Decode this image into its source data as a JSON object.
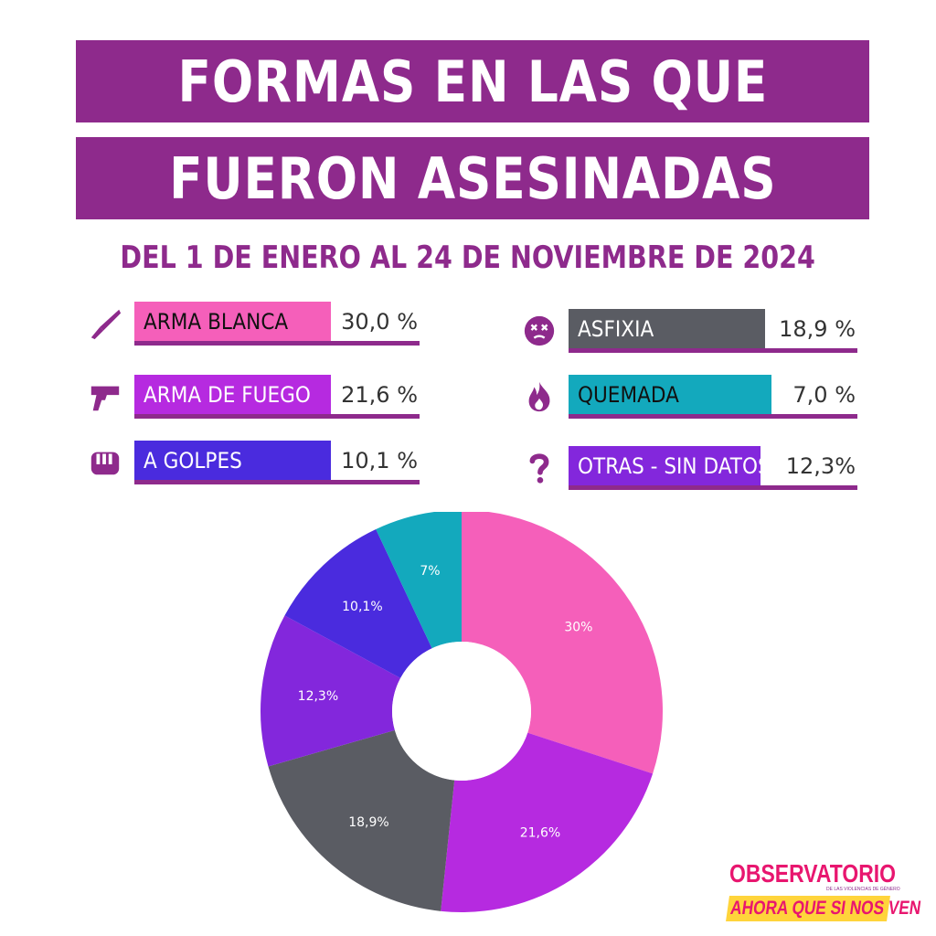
{
  "header": {
    "title_line1": "FORMAS EN LAS QUE",
    "title_line2": "FUERON ASESINADAS",
    "subtitle": "DEL 1 DE ENERO AL 24 DE NOVIEMBRE DE 2024"
  },
  "legend": {
    "left": [
      {
        "label": "ARMA BLANCA",
        "value": "30,0 %",
        "color": "#f55fba",
        "text_color": "#111111",
        "icon": "knife-icon"
      },
      {
        "label": "ARMA DE FUEGO",
        "value": "21,6 %",
        "color": "#b62ae0",
        "text_color": "#ffffff",
        "icon": "gun-icon"
      },
      {
        "label": "A GOLPES",
        "value": "10,1 %",
        "color": "#4a2bde",
        "text_color": "#ffffff",
        "icon": "fist-icon"
      }
    ],
    "right": [
      {
        "label": "ASFIXIA",
        "value": "18,9 %",
        "color": "#5a5c63",
        "text_color": "#ffffff",
        "icon": "dizzy-face-icon"
      },
      {
        "label": "QUEMADA",
        "value": "7,0 %",
        "color": "#13a9bd",
        "text_color": "#111111",
        "icon": "fire-icon"
      },
      {
        "label": "OTRAS - SIN DATOS",
        "value": "12,3%",
        "color": "#8327dc",
        "text_color": "#ffffff",
        "icon": "question-mark-icon"
      }
    ]
  },
  "chart_data": {
    "type": "pie",
    "donut": true,
    "categories": [
      "Arma blanca",
      "Arma de fuego",
      "Asfixia",
      "Otras - sin datos",
      "A golpes",
      "Quemada"
    ],
    "values": [
      30,
      21.6,
      18.9,
      12.3,
      10.1,
      7
    ],
    "data_labels": [
      "30%",
      "21,6%",
      "18,9%",
      "12,3%",
      "10,1%",
      "7%"
    ],
    "colors": [
      "#f55fba",
      "#b62ae0",
      "#5a5c63",
      "#8327dc",
      "#4a2bde",
      "#13a9bd"
    ]
  },
  "logo": {
    "line1": "OBSERVATORIO",
    "small": "DE LAS VIOLENCIAS DE GÉNERO",
    "line2": "AHORA QUE SI NOS VEN"
  },
  "colors": {
    "brand_purple": "#8e2a8c",
    "logo_pink": "#e8166f",
    "logo_yellow": "#ffd43b"
  }
}
